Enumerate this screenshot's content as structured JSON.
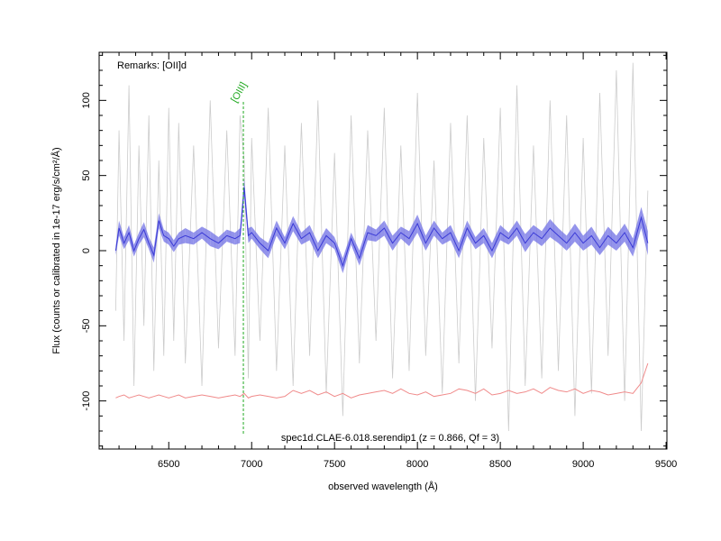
{
  "chart_data": {
    "type": "spectrum",
    "remarks": "Remarks: [OII]d",
    "caption": "spec1d.CLAE-6.018.serendip1 (z = 0.866, Qf = 3)",
    "x_label": "observed wavelength (Å)",
    "y_label": "Flux (counts or calibrated in 1e-17 erg/s/cm²/Å)",
    "annotations": [
      {
        "label": "[OIII]",
        "x": 6950,
        "color": "#22aa22"
      }
    ],
    "xlim": [
      6080,
      9505
    ],
    "ylim": [
      -132,
      132
    ],
    "xticks": [
      6500,
      7000,
      7500,
      8000,
      8500,
      9000,
      9500
    ],
    "yticks": [
      -100,
      -50,
      0,
      50,
      100
    ],
    "xminorticks": [
      6100,
      6200,
      6300,
      6400,
      6600,
      6700,
      6800,
      6900,
      7100,
      7200,
      7300,
      7400,
      7600,
      7700,
      7800,
      7900,
      8100,
      8200,
      8300,
      8400,
      8600,
      8700,
      8800,
      8900,
      9100,
      9200,
      9300,
      9400
    ],
    "yminorticks": [
      -130,
      -120,
      -110,
      -90,
      -80,
      -70,
      -60,
      -40,
      -30,
      -20,
      -10,
      10,
      20,
      30,
      40,
      60,
      70,
      80,
      90,
      110,
      120,
      130
    ],
    "x": [
      6180,
      6200,
      6230,
      6260,
      6290,
      6320,
      6350,
      6380,
      6410,
      6440,
      6470,
      6500,
      6530,
      6560,
      6600,
      6650,
      6700,
      6750,
      6800,
      6850,
      6900,
      6930,
      6955,
      6980,
      7000,
      7050,
      7100,
      7150,
      7200,
      7250,
      7300,
      7350,
      7400,
      7450,
      7500,
      7550,
      7600,
      7650,
      7700,
      7750,
      7800,
      7850,
      7900,
      7950,
      8000,
      8050,
      8100,
      8150,
      8200,
      8250,
      8300,
      8350,
      8400,
      8450,
      8500,
      8550,
      8600,
      8650,
      8700,
      8750,
      8800,
      8850,
      8900,
      8950,
      9000,
      9050,
      9100,
      9150,
      9200,
      9250,
      9300,
      9350,
      9390
    ],
    "series": [
      {
        "color": "#cccccc",
        "values": [
          -40,
          80,
          -60,
          110,
          -90,
          70,
          -50,
          90,
          -80,
          60,
          -70,
          95,
          -60,
          85,
          -75,
          70,
          -90,
          100,
          -65,
          80,
          -70,
          90,
          60,
          -85,
          75,
          -60,
          95,
          -80,
          70,
          -90,
          85,
          -70,
          100,
          -95,
          65,
          -110,
          90,
          -75,
          80,
          -60,
          95,
          -85,
          70,
          -80,
          105,
          -70,
          60,
          -95,
          85,
          -75,
          90,
          -100,
          75,
          -65,
          95,
          -120,
          110,
          -90,
          70,
          -85,
          100,
          -80,
          90,
          -110,
          75,
          -95,
          105,
          -70,
          120,
          -100,
          125,
          -120,
          40
        ]
      },
      {
        "color": "#3a3ad6",
        "band_color": "#7878e6",
        "values": [
          0,
          15,
          5,
          12,
          0,
          8,
          14,
          5,
          -3,
          20,
          10,
          8,
          3,
          8,
          10,
          8,
          12,
          8,
          5,
          10,
          8,
          10,
          42,
          10,
          12,
          5,
          0,
          15,
          5,
          18,
          8,
          12,
          0,
          10,
          5,
          -10,
          8,
          -5,
          12,
          10,
          15,
          5,
          12,
          8,
          18,
          5,
          15,
          8,
          12,
          0,
          15,
          5,
          10,
          0,
          12,
          8,
          15,
          5,
          12,
          8,
          15,
          10,
          5,
          12,
          5,
          10,
          2,
          10,
          5,
          12,
          2,
          22,
          5
        ],
        "errors": [
          3,
          5,
          4,
          5,
          4,
          4,
          5,
          4,
          5,
          5,
          4,
          4,
          4,
          4,
          5,
          4,
          4,
          5,
          4,
          4,
          4,
          5,
          6,
          5,
          4,
          4,
          5,
          5,
          4,
          5,
          4,
          5,
          5,
          5,
          4,
          5,
          4,
          5,
          5,
          4,
          5,
          5,
          4,
          5,
          6,
          5,
          5,
          4,
          5,
          5,
          5,
          4,
          5,
          5,
          5,
          4,
          5,
          6,
          5,
          5,
          6,
          5,
          5,
          6,
          5,
          6,
          5,
          6,
          5,
          6,
          6,
          7,
          8
        ]
      },
      {
        "color": "#f08a8a",
        "values": [
          -98,
          -97,
          -96,
          -98,
          -97,
          -96,
          -97,
          -98,
          -97,
          -96,
          -97,
          -98,
          -97,
          -96,
          -98,
          -97,
          -96,
          -97,
          -98,
          -97,
          -96,
          -97,
          -95,
          -98,
          -97,
          -96,
          -97,
          -98,
          -97,
          -93,
          -95,
          -93,
          -96,
          -94,
          -97,
          -95,
          -98,
          -96,
          -95,
          -94,
          -93,
          -95,
          -92,
          -95,
          -96,
          -94,
          -97,
          -96,
          -95,
          -92,
          -93,
          -95,
          -92,
          -96,
          -95,
          -93,
          -95,
          -94,
          -92,
          -95,
          -91,
          -93,
          -94,
          -92,
          -95,
          -93,
          -94,
          -96,
          -95,
          -94,
          -95,
          -88,
          -75
        ]
      }
    ]
  }
}
